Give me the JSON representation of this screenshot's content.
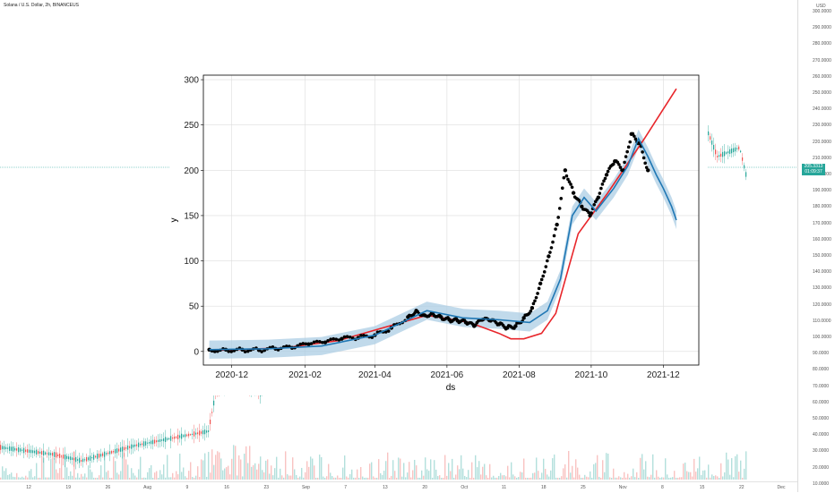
{
  "header": {
    "title": "Solana / U.S. Dollar, 2h, BINANCEUS"
  },
  "price_axis": {
    "unit": "USD",
    "ticks": [
      "300.0000",
      "290.0000",
      "280.0000",
      "270.0000",
      "260.0000",
      "250.0000",
      "240.0000",
      "230.0000",
      "220.0000",
      "210.0000",
      "200.0000",
      "190.0000",
      "180.0000",
      "170.0000",
      "160.0000",
      "150.0000",
      "140.0000",
      "130.0000",
      "120.0000",
      "110.0000",
      "100.0000",
      "90.0000",
      "80.0000",
      "70.0000",
      "60.0000",
      "50.0000",
      "40.0000",
      "30.0000",
      "20.0000",
      "10.0000"
    ],
    "current_price": "205.3313",
    "countdown": "01:09:37"
  },
  "time_axis": {
    "labels": [
      "12",
      "19",
      "26",
      "Aug",
      "9",
      "16",
      "23",
      "Sep",
      "7",
      "13",
      "20",
      "Oct",
      "11",
      "18",
      "25",
      "Nov",
      "8",
      "15",
      "22",
      "Dec"
    ]
  },
  "colors": {
    "up": "#26a69a",
    "down": "#ef5350",
    "actual_points": "#000000",
    "forecast_line": "#1f77b4",
    "forecast_band": "#a6cbe3",
    "trend_line": "#e8262b",
    "current_price_badge": "#26a69a"
  },
  "chart_data": [
    {
      "type": "line",
      "title": "",
      "xlabel": "ds",
      "ylabel": "y",
      "x_ticks": [
        "2020-12",
        "2021-02",
        "2021-04",
        "2021-06",
        "2021-08",
        "2021-10",
        "2021-12"
      ],
      "y_ticks": [
        0,
        50,
        100,
        150,
        200,
        250,
        300
      ],
      "ylim": [
        -15,
        305
      ],
      "xlim": [
        "2020-11-07",
        "2021-12-31"
      ],
      "grid": true,
      "series": [
        {
          "role": "actual",
          "x": [
            "2020-11-12",
            "2020-11-26",
            "2020-12-10",
            "2020-12-24",
            "2021-01-07",
            "2021-01-21",
            "2021-02-04",
            "2021-02-18",
            "2021-03-04",
            "2021-03-18",
            "2021-04-01",
            "2021-04-15",
            "2021-04-29",
            "2021-05-06",
            "2021-05-13",
            "2021-05-20",
            "2021-05-27",
            "2021-06-03",
            "2021-06-10",
            "2021-06-17",
            "2021-06-24",
            "2021-07-01",
            "2021-07-08",
            "2021-07-15",
            "2021-07-22",
            "2021-07-29",
            "2021-08-05",
            "2021-08-12",
            "2021-08-19",
            "2021-08-26",
            "2021-09-02",
            "2021-09-09",
            "2021-09-16",
            "2021-09-23",
            "2021-09-30",
            "2021-10-07",
            "2021-10-14",
            "2021-10-21",
            "2021-10-28",
            "2021-11-04",
            "2021-11-11",
            "2021-11-18"
          ],
          "y": [
            2,
            2,
            2,
            1.5,
            3,
            4,
            8,
            10,
            14,
            15,
            18,
            26,
            38,
            45,
            40,
            42,
            38,
            35,
            34,
            32,
            28,
            35,
            34,
            30,
            26,
            28,
            37,
            48,
            75,
            105,
            140,
            200,
            175,
            160,
            150,
            170,
            195,
            210,
            200,
            240,
            230,
            200
          ]
        },
        {
          "role": "forecast",
          "x": [
            "2020-11-12",
            "2021-01-01",
            "2021-02-15",
            "2021-04-01",
            "2021-05-15",
            "2021-06-15",
            "2021-07-15",
            "2021-08-10",
            "2021-08-25",
            "2021-09-05",
            "2021-09-15",
            "2021-09-25",
            "2021-10-05",
            "2021-10-20",
            "2021-11-01",
            "2021-11-10",
            "2021-11-18",
            "2021-11-25",
            "2021-12-01",
            "2021-12-08",
            "2021-12-12"
          ],
          "y": [
            2,
            3,
            6,
            18,
            45,
            37,
            35,
            32,
            45,
            80,
            150,
            170,
            155,
            180,
            205,
            235,
            215,
            195,
            180,
            160,
            145
          ],
          "band_half_width": 10
        },
        {
          "role": "trend",
          "x": [
            "2020-11-12",
            "2021-01-15",
            "2021-03-01",
            "2021-05-15",
            "2021-06-20",
            "2021-07-15",
            "2021-07-25",
            "2021-08-05",
            "2021-08-20",
            "2021-09-01",
            "2021-09-20",
            "2021-10-15",
            "2021-11-15",
            "2021-12-12"
          ],
          "y": [
            1,
            4,
            12,
            40,
            32,
            20,
            14,
            14,
            20,
            42,
            130,
            175,
            235,
            290
          ]
        }
      ]
    }
  ]
}
